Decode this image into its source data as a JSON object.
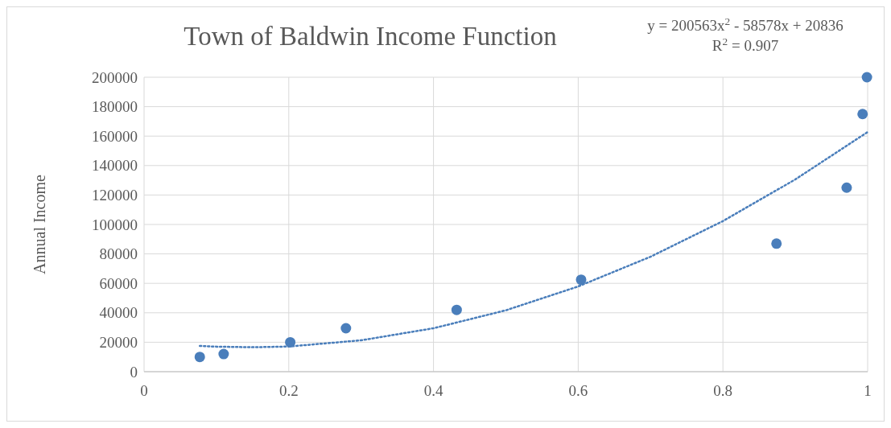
{
  "chart_data": {
    "type": "scatter",
    "title": "Town of Baldwin Income Function",
    "ylabel": "Annual Income",
    "x": [
      0.077,
      0.11,
      0.202,
      0.279,
      0.432,
      0.604,
      0.874,
      0.971,
      0.993,
      0.999
    ],
    "series": [
      {
        "color": "#4a7ebb",
        "marker": "circle",
        "values": [
          10000,
          12000,
          20000,
          29500,
          42000,
          62500,
          87000,
          125000,
          175000,
          200000
        ]
      },
      {
        "type": "line",
        "color": "#4a7ebb",
        "line_style": "dotted",
        "marker": "none",
        "x": [
          0.077,
          0.1,
          0.15,
          0.2,
          0.3,
          0.4,
          0.5,
          0.6,
          0.7,
          0.8,
          0.9,
          1.0
        ],
        "values": [
          17500,
          17000,
          16600,
          17100,
          21300,
          29500,
          41700,
          57900,
          78100,
          102300,
          130600,
          162800
        ]
      }
    ],
    "xlim": [
      0,
      1
    ],
    "xticks": [
      0,
      0.2,
      0.4,
      0.6,
      0.8,
      1
    ],
    "ylim": [
      0,
      200000
    ],
    "yticks": [
      0,
      20000,
      40000,
      60000,
      80000,
      100000,
      120000,
      140000,
      160000,
      180000,
      200000
    ],
    "grid": true,
    "annotations": [
      "y = 200563x$^{2}$ - 58578x + 20836",
      "R$^{2}$ = 0.907"
    ]
  }
}
